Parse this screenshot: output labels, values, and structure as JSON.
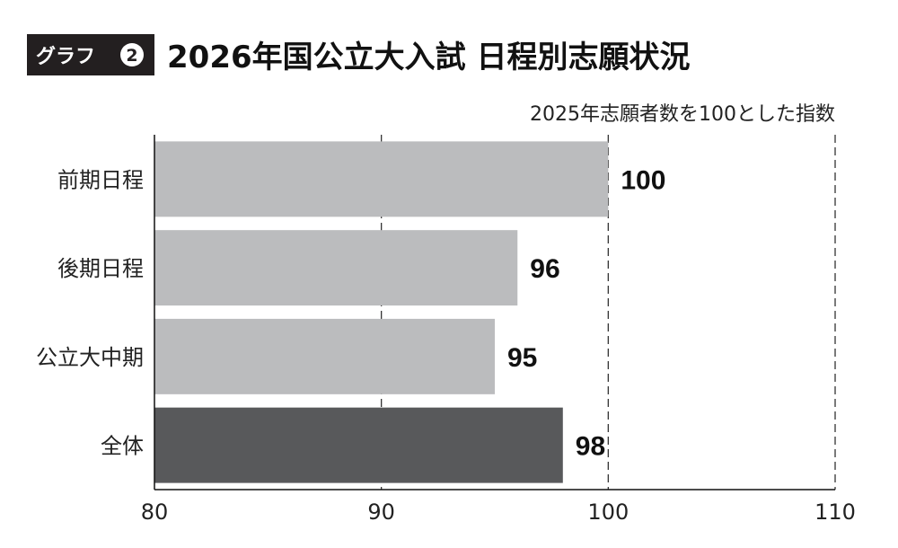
{
  "header": {
    "badge": "グラフ",
    "badge_number": "2",
    "title": "2026年国公立大入試 日程別志願状況",
    "subtitle": "2025年志願者数を100とした指数"
  },
  "chart_data": {
    "type": "bar",
    "orientation": "horizontal",
    "categories": [
      "前期日程",
      "後期日程",
      "公立大中期",
      "全体"
    ],
    "values": [
      100,
      96,
      95,
      98
    ],
    "value_labels": [
      "100",
      "96",
      "95",
      "98"
    ],
    "bar_colors": [
      "#bbbcbe",
      "#bbbcbe",
      "#bbbcbe",
      "#58595b"
    ],
    "xlim": [
      80,
      110
    ],
    "xticks": [
      "80",
      "90",
      "100",
      "110"
    ],
    "grid": "vertical dashed"
  },
  "colors": {
    "badge_bg": "#231f20",
    "axis": "#111111"
  }
}
